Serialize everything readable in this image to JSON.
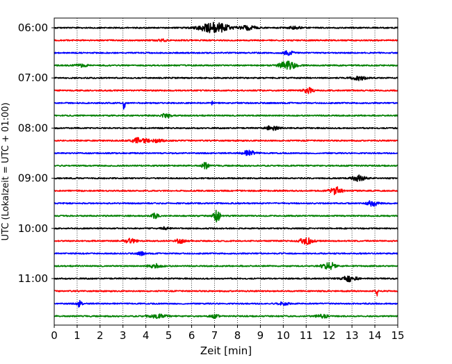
{
  "chart_data": {
    "type": "line",
    "title": "",
    "xlabel": "Zeit  [min]",
    "ylabel": "UTC (Lokalzeit = UTC + 01:00)",
    "xlim": [
      0,
      15
    ],
    "x_ticks": [
      0,
      1,
      2,
      3,
      4,
      5,
      6,
      7,
      8,
      9,
      10,
      11,
      12,
      13,
      14,
      15
    ],
    "x_tick_labels": [
      "0",
      "1",
      "2",
      "3",
      "4",
      "5",
      "6",
      "7",
      "8",
      "9",
      "10",
      "11",
      "12",
      "13",
      "14",
      "15"
    ],
    "y_tick_labels": [
      "06:00",
      "07:00",
      "08:00",
      "09:00",
      "10:00",
      "11:00"
    ],
    "trace_interval_min": 15,
    "grid": "vertical dotted at each minute",
    "legend": "none",
    "trace_colors": [
      "#000000",
      "#ff0000",
      "#0000ff",
      "#008000"
    ],
    "traces": [
      {
        "start": "06:00",
        "events": [
          {
            "t": 7.0,
            "amp": 1.0,
            "width": 0.9
          },
          {
            "t": 8.5,
            "amp": 0.4,
            "width": 0.5
          },
          {
            "t": 10.5,
            "amp": 0.25,
            "width": 0.4
          }
        ]
      },
      {
        "start": "06:15",
        "events": [
          {
            "t": 4.7,
            "amp": 0.2,
            "width": 0.3
          }
        ]
      },
      {
        "start": "06:30",
        "events": [
          {
            "t": 10.2,
            "amp": 0.4,
            "width": 0.3
          }
        ]
      },
      {
        "start": "06:45",
        "events": [
          {
            "t": 10.2,
            "amp": 0.85,
            "width": 0.5
          },
          {
            "t": 1.2,
            "amp": 0.25,
            "width": 0.4
          }
        ]
      },
      {
        "start": "07:00",
        "events": [
          {
            "t": 13.3,
            "amp": 0.5,
            "width": 0.4
          }
        ]
      },
      {
        "start": "07:15",
        "events": [
          {
            "t": 11.1,
            "amp": 0.5,
            "width": 0.3
          }
        ]
      },
      {
        "start": "07:30",
        "events": [
          {
            "t": 3.05,
            "amp": 2.0,
            "width": 0.05
          },
          {
            "t": 6.9,
            "amp": 0.7,
            "width": 0.05
          }
        ]
      },
      {
        "start": "07:45",
        "events": [
          {
            "t": 4.9,
            "amp": 0.4,
            "width": 0.3
          }
        ]
      },
      {
        "start": "08:00",
        "events": [
          {
            "t": 9.5,
            "amp": 0.4,
            "width": 0.4
          }
        ]
      },
      {
        "start": "08:15",
        "events": [
          {
            "t": 3.7,
            "amp": 0.6,
            "width": 0.4
          },
          {
            "t": 4.4,
            "amp": 0.3,
            "width": 0.5
          }
        ]
      },
      {
        "start": "08:30",
        "events": [
          {
            "t": 8.5,
            "amp": 0.5,
            "width": 0.4
          }
        ]
      },
      {
        "start": "08:45",
        "events": [
          {
            "t": 6.6,
            "amp": 0.6,
            "width": 0.2
          }
        ]
      },
      {
        "start": "09:00",
        "events": [
          {
            "t": 13.3,
            "amp": 0.55,
            "width": 0.4
          }
        ]
      },
      {
        "start": "09:15",
        "events": [
          {
            "t": 12.3,
            "amp": 0.7,
            "width": 0.4
          }
        ]
      },
      {
        "start": "09:30",
        "events": [
          {
            "t": 13.9,
            "amp": 0.5,
            "width": 0.35
          }
        ]
      },
      {
        "start": "09:45",
        "events": [
          {
            "t": 7.1,
            "amp": 1.1,
            "width": 0.2
          },
          {
            "t": 4.4,
            "amp": 0.5,
            "width": 0.2
          }
        ]
      },
      {
        "start": "10:00",
        "events": [
          {
            "t": 4.8,
            "amp": 0.2,
            "width": 0.3
          }
        ]
      },
      {
        "start": "10:15",
        "events": [
          {
            "t": 11.0,
            "amp": 0.6,
            "width": 0.4
          },
          {
            "t": 3.3,
            "amp": 0.4,
            "width": 0.4
          },
          {
            "t": 5.5,
            "amp": 0.4,
            "width": 0.3
          }
        ]
      },
      {
        "start": "10:30",
        "events": [
          {
            "t": 3.8,
            "amp": 0.35,
            "width": 0.2
          }
        ]
      },
      {
        "start": "10:45",
        "events": [
          {
            "t": 12.0,
            "amp": 0.7,
            "width": 0.45
          },
          {
            "t": 4.4,
            "amp": 0.4,
            "width": 0.4
          }
        ]
      },
      {
        "start": "11:00",
        "events": [
          {
            "t": 12.9,
            "amp": 0.6,
            "width": 0.4
          }
        ]
      },
      {
        "start": "11:15",
        "events": [
          {
            "t": 14.1,
            "amp": 0.9,
            "width": 0.08
          }
        ]
      },
      {
        "start": "11:30",
        "events": [
          {
            "t": 1.1,
            "amp": 0.6,
            "width": 0.15
          },
          {
            "t": 10.0,
            "amp": 0.35,
            "width": 0.3
          }
        ]
      },
      {
        "start": "11:45",
        "events": [
          {
            "t": 4.5,
            "amp": 0.35,
            "width": 0.6
          },
          {
            "t": 7.0,
            "amp": 0.3,
            "width": 0.3
          },
          {
            "t": 11.7,
            "amp": 0.3,
            "width": 0.4
          }
        ]
      }
    ]
  }
}
